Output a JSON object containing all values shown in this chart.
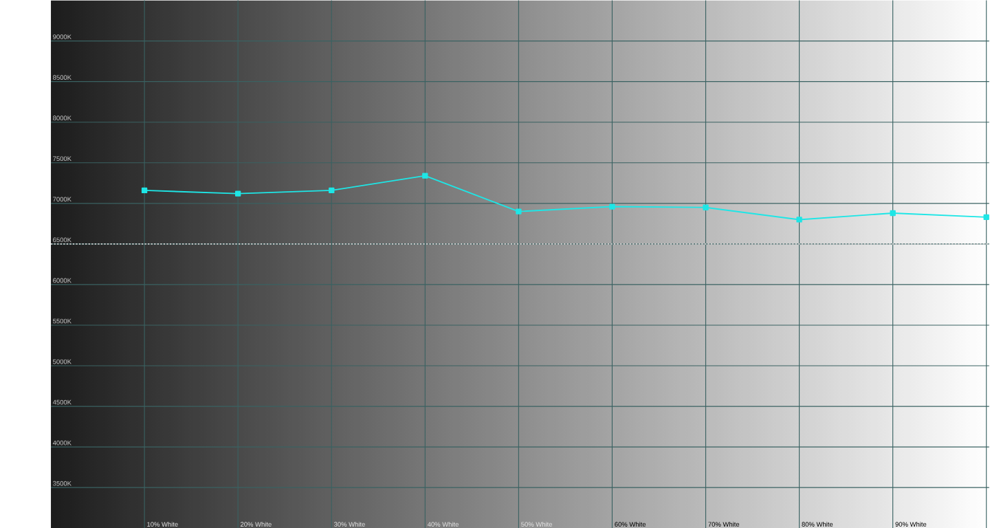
{
  "chart_data": {
    "type": "line",
    "categories": [
      "10% White",
      "20% White",
      "30% White",
      "40% White",
      "50% White",
      "60% White",
      "70% White",
      "80% White",
      "90% White",
      null
    ],
    "series": [
      {
        "color": "#1ee6e6",
        "values": [
          7160,
          7120,
          7160,
          7340,
          6900,
          6960,
          6950,
          6800,
          6880,
          6830
        ]
      }
    ],
    "ylim": [
      3000,
      9500
    ],
    "yticks": [
      {
        "value": 3500,
        "label": "3500K"
      },
      {
        "value": 4000,
        "label": "4000K"
      },
      {
        "value": 4500,
        "label": "4500K"
      },
      {
        "value": 5000,
        "label": "5000K"
      },
      {
        "value": 5500,
        "label": "5500K"
      },
      {
        "value": 6000,
        "label": "6000K"
      },
      {
        "value": 6500,
        "label": "6500K"
      },
      {
        "value": 7000,
        "label": "7000K"
      },
      {
        "value": 7500,
        "label": "7500K"
      },
      {
        "value": 8000,
        "label": "8000K"
      },
      {
        "value": 8500,
        "label": "8500K"
      },
      {
        "value": 9000,
        "label": "9000K"
      }
    ],
    "grid": true,
    "marker": "square",
    "line_style": "solid",
    "ref_lines": [
      {
        "axis": "y",
        "value": 6500,
        "color": "#d2d2d2",
        "line_style": "dotted"
      }
    ]
  }
}
